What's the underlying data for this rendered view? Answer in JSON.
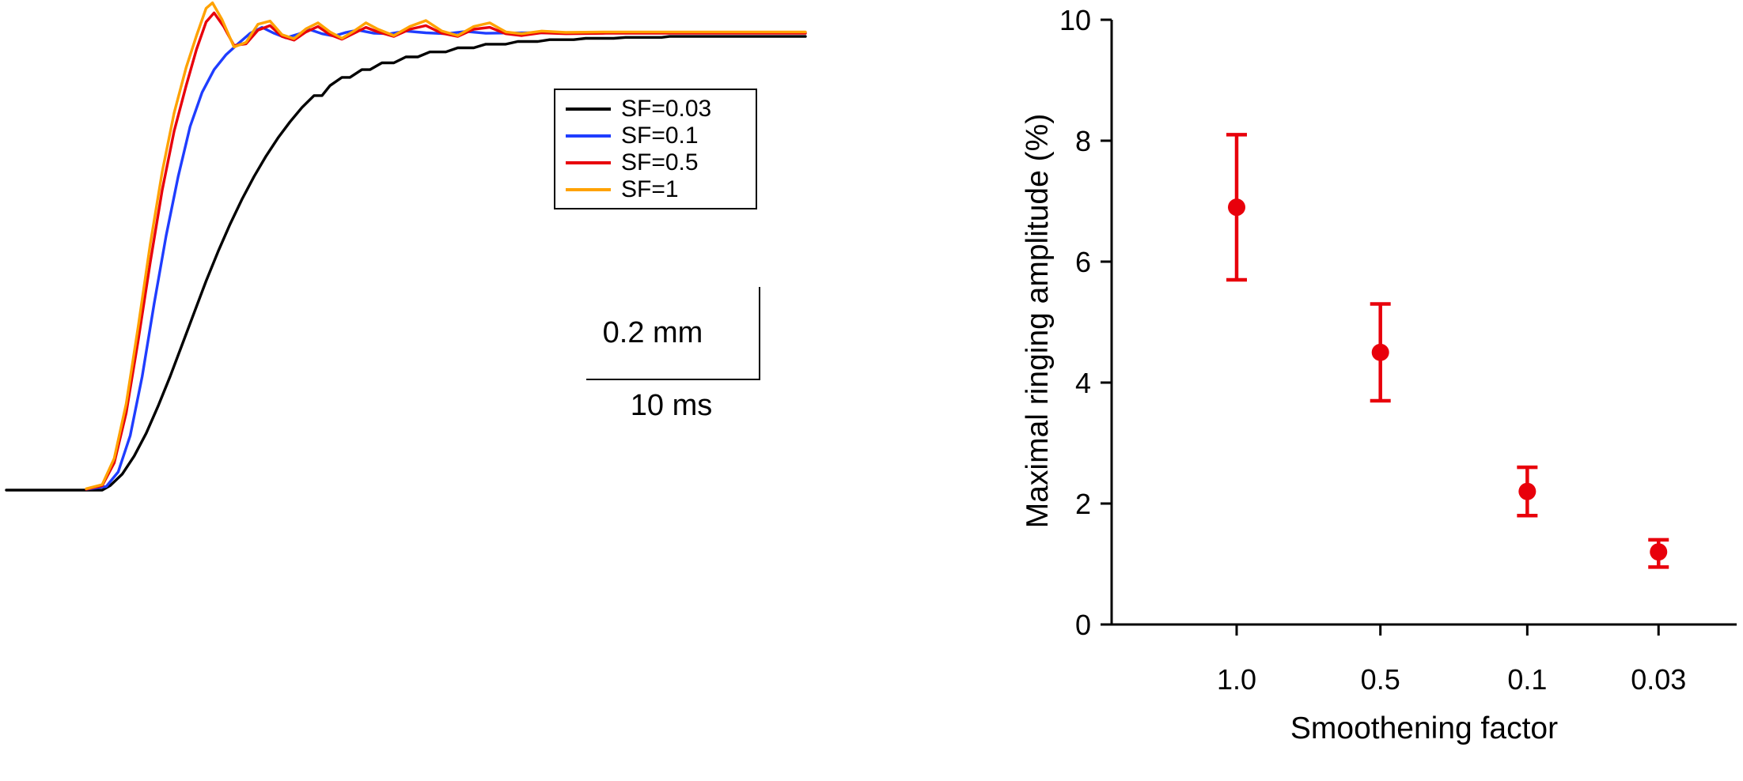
{
  "figure": {
    "background": "#ffffff"
  },
  "chart_data": [
    {
      "type": "line",
      "legend_position": "upper-right",
      "scale_bar": {
        "vertical_label": "0.2 mm",
        "horizontal_label": "10 ms"
      },
      "x_range": [
        0,
        100
      ],
      "y_range": [
        0,
        1.1
      ],
      "series": [
        {
          "label": "SF=0.03",
          "color": "#000000",
          "points": [
            [
              0,
              0
            ],
            [
              12,
              0
            ],
            [
              13,
              0.01
            ],
            [
              14.5,
              0.035
            ],
            [
              16,
              0.075
            ],
            [
              17.5,
              0.125
            ],
            [
              19,
              0.185
            ],
            [
              20.5,
              0.25
            ],
            [
              22,
              0.32
            ],
            [
              23.5,
              0.39
            ],
            [
              25,
              0.46
            ],
            [
              26.5,
              0.525
            ],
            [
              28,
              0.585
            ],
            [
              29.5,
              0.64
            ],
            [
              31,
              0.69
            ],
            [
              32.5,
              0.735
            ],
            [
              34,
              0.775
            ],
            [
              35.5,
              0.81
            ],
            [
              37,
              0.842
            ],
            [
              38.5,
              0.868
            ],
            [
              39.5,
              0.868
            ],
            [
              40.5,
              0.89
            ],
            [
              42,
              0.908
            ],
            [
              43,
              0.908
            ],
            [
              44.5,
              0.925
            ],
            [
              45.5,
              0.925
            ],
            [
              47,
              0.94
            ],
            [
              48.5,
              0.94
            ],
            [
              50,
              0.953
            ],
            [
              51.5,
              0.953
            ],
            [
              53,
              0.964
            ],
            [
              55,
              0.964
            ],
            [
              56.5,
              0.973
            ],
            [
              58.5,
              0.973
            ],
            [
              60,
              0.981
            ],
            [
              62.5,
              0.981
            ],
            [
              64,
              0.987
            ],
            [
              66.5,
              0.987
            ],
            [
              68,
              0.991
            ],
            [
              71,
              0.991
            ],
            [
              72.5,
              0.994
            ],
            [
              76,
              0.994
            ],
            [
              77.5,
              0.996
            ],
            [
              82,
              0.996
            ],
            [
              83,
              0.998
            ],
            [
              100,
              0.998
            ]
          ]
        },
        {
          "label": "SF=0.1",
          "color": "#1f3dff",
          "points": [
            [
              10,
              0.002
            ],
            [
              12.5,
              0.008
            ],
            [
              14,
              0.04
            ],
            [
              15.5,
              0.12
            ],
            [
              17,
              0.25
            ],
            [
              18.5,
              0.41
            ],
            [
              20,
              0.56
            ],
            [
              21.5,
              0.69
            ],
            [
              23,
              0.8
            ],
            [
              24.5,
              0.875
            ],
            [
              26,
              0.925
            ],
            [
              27.5,
              0.958
            ],
            [
              29,
              0.982
            ],
            [
              30.5,
              1.005
            ],
            [
              32,
              1.018
            ],
            [
              33.5,
              1.005
            ],
            [
              35,
              0.995
            ],
            [
              36.5,
              1.003
            ],
            [
              38,
              1.013
            ],
            [
              39.5,
              1.004
            ],
            [
              41,
              0.999
            ],
            [
              42.5,
              1.007
            ],
            [
              44,
              1.012
            ],
            [
              46,
              1.005
            ],
            [
              48,
              1.004
            ],
            [
              50,
              1.01
            ],
            [
              52.5,
              1.006
            ],
            [
              55,
              1.004
            ],
            [
              57.5,
              1.009
            ],
            [
              60,
              1.005
            ],
            [
              65,
              1.006
            ],
            [
              70,
              1.006
            ],
            [
              100,
              1.006
            ]
          ]
        },
        {
          "label": "SF=0.5",
          "color": "#e8000b",
          "points": [
            [
              10,
              0.002
            ],
            [
              12,
              0.01
            ],
            [
              13.5,
              0.06
            ],
            [
              15,
              0.17
            ],
            [
              16.5,
              0.33
            ],
            [
              18,
              0.5
            ],
            [
              19.5,
              0.66
            ],
            [
              21,
              0.79
            ],
            [
              22.5,
              0.89
            ],
            [
              23.8,
              0.97
            ],
            [
              25,
              1.03
            ],
            [
              26,
              1.05
            ],
            [
              27.2,
              1.02
            ],
            [
              28.5,
              0.978
            ],
            [
              30,
              0.982
            ],
            [
              31.5,
              1.012
            ],
            [
              33,
              1.022
            ],
            [
              34.5,
              0.998
            ],
            [
              36,
              0.99
            ],
            [
              37.5,
              1.008
            ],
            [
              39,
              1.02
            ],
            [
              40.5,
              1.002
            ],
            [
              42,
              0.992
            ],
            [
              43.5,
              1.005
            ],
            [
              45,
              1.018
            ],
            [
              46.5,
              1.008
            ],
            [
              48.5,
              0.998
            ],
            [
              50.5,
              1.014
            ],
            [
              52.5,
              1.022
            ],
            [
              54.5,
              1.005
            ],
            [
              56.5,
              0.998
            ],
            [
              58.5,
              1.014
            ],
            [
              60.5,
              1.018
            ],
            [
              62.5,
              1.004
            ],
            [
              64.5,
              1.0
            ],
            [
              67,
              1.006
            ],
            [
              70,
              1.004
            ],
            [
              75,
              1.005
            ],
            [
              85,
              1.005
            ],
            [
              100,
              1.005
            ]
          ]
        },
        {
          "label": "SF=1",
          "color": "#ffa200",
          "points": [
            [
              10,
              0.003
            ],
            [
              12,
              0.012
            ],
            [
              13.5,
              0.07
            ],
            [
              15,
              0.19
            ],
            [
              16.5,
              0.36
            ],
            [
              18,
              0.54
            ],
            [
              19.5,
              0.7
            ],
            [
              21,
              0.83
            ],
            [
              22.5,
              0.93
            ],
            [
              23.8,
              1.0
            ],
            [
              25,
              1.06
            ],
            [
              25.8,
              1.072
            ],
            [
              27,
              1.035
            ],
            [
              28.5,
              0.975
            ],
            [
              30,
              0.985
            ],
            [
              31.5,
              1.025
            ],
            [
              33,
              1.032
            ],
            [
              34.5,
              1.002
            ],
            [
              36,
              0.993
            ],
            [
              37.5,
              1.015
            ],
            [
              39,
              1.028
            ],
            [
              40.5,
              1.008
            ],
            [
              42,
              0.994
            ],
            [
              43.5,
              1.01
            ],
            [
              45,
              1.028
            ],
            [
              46.5,
              1.014
            ],
            [
              48.5,
              1.0
            ],
            [
              50.5,
              1.02
            ],
            [
              52.5,
              1.033
            ],
            [
              54.5,
              1.01
            ],
            [
              56.5,
              1.0
            ],
            [
              58.5,
              1.02
            ],
            [
              60.5,
              1.028
            ],
            [
              62.5,
              1.008
            ],
            [
              64.5,
              1.004
            ],
            [
              67,
              1.01
            ],
            [
              70,
              1.007
            ],
            [
              75,
              1.008
            ],
            [
              85,
              1.008
            ],
            [
              100,
              1.008
            ]
          ]
        }
      ]
    },
    {
      "type": "scatter",
      "categories": [
        "1.0",
        "0.5",
        "0.1",
        "0.03"
      ],
      "values": [
        6.9,
        4.5,
        2.2,
        1.2
      ],
      "error_upper": [
        8.1,
        5.3,
        2.6,
        1.4
      ],
      "error_lower": [
        5.7,
        3.7,
        1.8,
        0.95
      ],
      "xlabel": "Smoothening factor",
      "ylabel": "Maximal ringing amplitude (%)",
      "ylim": [
        0,
        10
      ],
      "yticks": [
        0,
        2,
        4,
        6,
        8,
        10
      ],
      "marker_color": "#e8000b",
      "grid": false,
      "legend_position": "none"
    }
  ]
}
